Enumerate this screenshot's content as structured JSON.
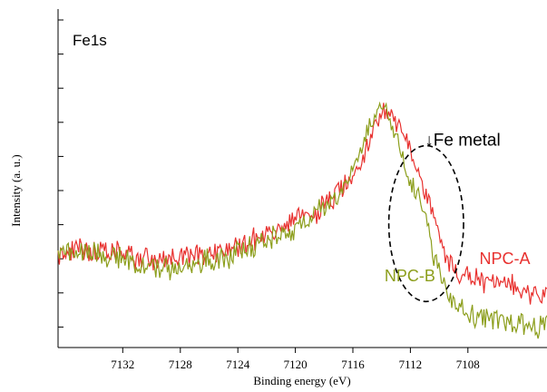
{
  "chart_data": {
    "type": "line",
    "title": "",
    "panel_label": "Fe1s",
    "xlabel": "Binding energy (eV)",
    "ylabel": "Intensity (a. u.)",
    "x_reversed": true,
    "xlim": [
      7136.5,
      7102.5
    ],
    "ylim": [
      0,
      100
    ],
    "x_ticks": [
      7132,
      7128,
      7124,
      7120,
      7116,
      7112,
      7108
    ],
    "x_tick_labels": [
      "7132",
      "7128",
      "7124",
      "7120",
      "7116",
      "7112",
      "7108"
    ],
    "y_tick_labels_shown": false,
    "grid": false,
    "series": [
      {
        "name": "NPC-A",
        "color": "#e8312f",
        "x": [
          7136.5,
          7135,
          7134,
          7133,
          7132,
          7131,
          7130,
          7129,
          7128,
          7127,
          7126,
          7125,
          7124,
          7123,
          7122,
          7121,
          7120,
          7119,
          7118,
          7117.5,
          7117,
          7116.5,
          7116,
          7115.5,
          7115,
          7114.5,
          7114,
          7113.7,
          7113.4,
          7113.2,
          7113,
          7112.7,
          7112.4,
          7112.1,
          7111.8,
          7111.5,
          7111.2,
          7110.9,
          7110.6,
          7110.3,
          7110,
          7109.6,
          7109.2,
          7108.8,
          7108.4,
          7108,
          7107.5,
          7107,
          7106,
          7105,
          7104,
          7103,
          7102.5
        ],
        "y": [
          31,
          33,
          33,
          31,
          32,
          30,
          30,
          29,
          30,
          31,
          32,
          33,
          34,
          37,
          38,
          40,
          43,
          45,
          48,
          50,
          53,
          56,
          60,
          64,
          69,
          75,
          79,
          83,
          81,
          79,
          78,
          76,
          72,
          67,
          63,
          60,
          57,
          53,
          48,
          42,
          37,
          32,
          28,
          25,
          24,
          24,
          23,
          22,
          21,
          20,
          19,
          18,
          17
        ]
      },
      {
        "name": "NPC-B",
        "color": "#8c9e1c",
        "x": [
          7136.5,
          7135,
          7134,
          7133,
          7132,
          7131,
          7130,
          7129,
          7128,
          7127,
          7126,
          7125,
          7124,
          7123,
          7122,
          7121,
          7120,
          7119,
          7118,
          7117.5,
          7117,
          7116.5,
          7116,
          7115.5,
          7115,
          7114.5,
          7114,
          7113.7,
          7113.5,
          7113.3,
          7113,
          7112.7,
          7112.4,
          7112.1,
          7111.8,
          7111.5,
          7111.2,
          7110.9,
          7110.6,
          7110.3,
          7110,
          7109.6,
          7109.2,
          7108.8,
          7108.4,
          7108,
          7107.5,
          7107,
          7106,
          7105,
          7104,
          7103,
          7102.5
        ],
        "y": [
          33,
          32,
          33,
          30,
          30,
          28,
          27,
          26,
          27,
          28,
          29,
          30,
          32,
          34,
          36,
          38,
          41,
          44,
          47,
          49,
          52,
          56,
          61,
          67,
          75,
          80,
          82,
          83,
          80,
          76,
          72,
          68,
          64,
          59,
          55,
          52,
          47,
          42,
          36,
          31,
          26,
          21,
          17,
          14,
          12,
          11,
          10,
          9,
          8,
          8,
          7,
          7,
          7
        ]
      }
    ],
    "annotations": [
      {
        "text": "↓Fe metal",
        "x": 7111.0,
        "y": 69
      },
      {
        "text": "NPC-B",
        "x": 7113.8,
        "y": 22
      },
      {
        "text": "NPC-A",
        "x": 7107.2,
        "y": 28
      }
    ],
    "highlight_ellipse": {
      "cx": 7110.9,
      "cy": 42,
      "rx": 2.6,
      "ry": 27
    }
  }
}
